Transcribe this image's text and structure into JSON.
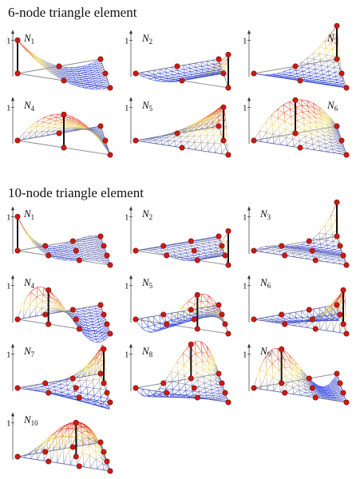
{
  "sections": [
    {
      "title": "6-node triangle element",
      "order": 2,
      "elements": [
        {
          "label_base": "N",
          "label_sub": "1",
          "node": 0
        },
        {
          "label_base": "N",
          "label_sub": "2",
          "node": 1
        },
        {
          "label_base": "N",
          "label_sub": "3",
          "node": 2
        },
        {
          "label_base": "N",
          "label_sub": "4",
          "node": 3
        },
        {
          "label_base": "N",
          "label_sub": "5",
          "node": 4
        },
        {
          "label_base": "N",
          "label_sub": "6",
          "node": 5
        }
      ]
    },
    {
      "title": "10-node triangle element",
      "order": 3,
      "elements": [
        {
          "label_base": "N",
          "label_sub": "1",
          "node": 0
        },
        {
          "label_base": "N",
          "label_sub": "2",
          "node": 1
        },
        {
          "label_base": "N",
          "label_sub": "3",
          "node": 2
        },
        {
          "label_base": "N",
          "label_sub": "4",
          "node": 3
        },
        {
          "label_base": "N",
          "label_sub": "5",
          "node": 4
        },
        {
          "label_base": "N",
          "label_sub": "6",
          "node": 5
        },
        {
          "label_base": "N",
          "label_sub": "7",
          "node": 6
        },
        {
          "label_base": "N",
          "label_sub": "8",
          "node": 7
        },
        {
          "label_base": "N",
          "label_sub": "9",
          "node": 8
        },
        {
          "label_base": "N",
          "label_sub": "10",
          "node": 9
        }
      ]
    }
  ],
  "axis_tick_label": "1",
  "colors": {
    "low": "#2c3fe0",
    "mid": "#f2e060",
    "high": "#e0201a",
    "node": "#cc1a12",
    "frame": "#888888"
  }
}
